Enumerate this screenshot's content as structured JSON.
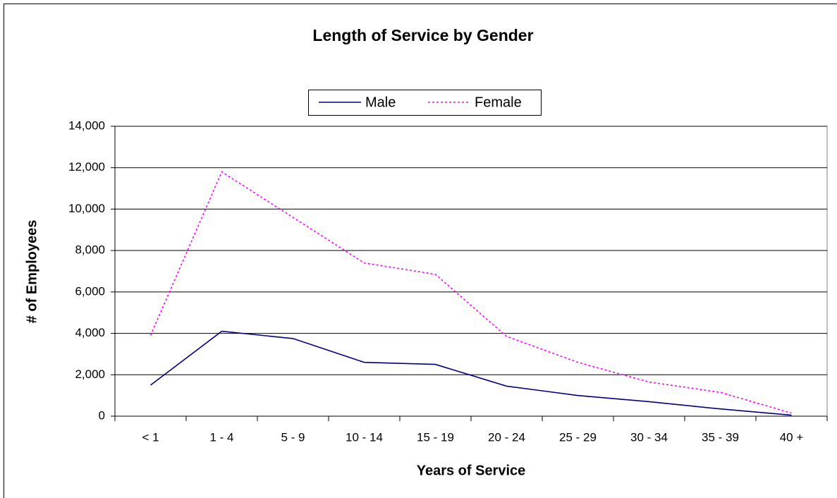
{
  "chart_data": {
    "type": "line",
    "title": "Length of Service by Gender",
    "x_label": "Years of Service",
    "y_label": "# of Employees",
    "categories": [
      "< 1",
      "1 - 4",
      "5 - 9",
      "10 - 14",
      "15 - 19",
      "20 - 24",
      "25 - 29",
      "30 - 34",
      "35 - 39",
      "40 +"
    ],
    "series": [
      {
        "name": "Male",
        "color": "#000080",
        "dash": "solid",
        "values": [
          1500,
          4100,
          3750,
          2600,
          2500,
          1450,
          1000,
          700,
          350,
          50
        ]
      },
      {
        "name": "Female",
        "color": "#ff00ff",
        "dash": "dotted",
        "values": [
          3900,
          11800,
          9600,
          7400,
          6850,
          3850,
          2600,
          1650,
          1150,
          150
        ]
      }
    ],
    "ylim": [
      0,
      14000
    ],
    "yticks": [
      0,
      {
        "value": 2000,
        "label": "2,000"
      },
      {
        "value": 4000,
        "label": "4,000"
      },
      {
        "value": 6000,
        "label": "6,000"
      },
      {
        "value": 8000,
        "label": "8,000"
      },
      {
        "value": 10000,
        "label": "10,000"
      },
      {
        "value": 12000,
        "label": "12,000"
      },
      {
        "value": 14000,
        "label": "14,000"
      }
    ],
    "grid": true,
    "legend": "top"
  }
}
